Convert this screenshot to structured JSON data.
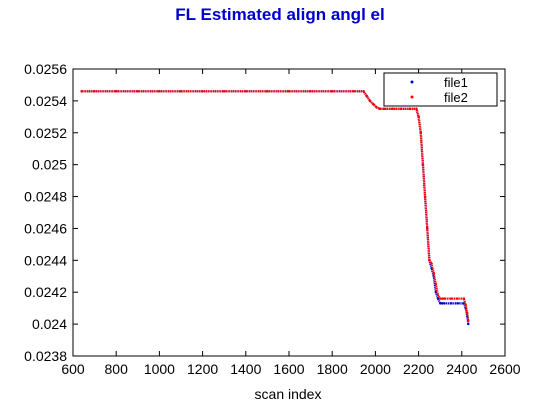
{
  "chart_data": {
    "type": "scatter",
    "title": "FL Estimated align angl el",
    "xlabel": "scan index",
    "ylabel": "",
    "xlim": [
      600,
      2600
    ],
    "ylim": [
      0.0238,
      0.0256
    ],
    "xticks": [
      "600",
      "800",
      "1000",
      "1200",
      "1400",
      "1600",
      "1800",
      "2000",
      "2200",
      "2400",
      "2600"
    ],
    "yticks": [
      "0.0238",
      "0.024",
      "0.0242",
      "0.0244",
      "0.0246",
      "0.0248",
      "0.025",
      "0.0252",
      "0.0254",
      "0.0256"
    ],
    "grid": false,
    "legend_position": "top-right",
    "series": [
      {
        "name": "file1",
        "color": "#0000cc",
        "marker": "dot",
        "x": [
          640,
          700,
          800,
          900,
          1000,
          1100,
          1200,
          1300,
          1400,
          1500,
          1600,
          1700,
          1800,
          1900,
          1945,
          1960,
          1975,
          1990,
          2005,
          2020,
          2040,
          2080,
          2120,
          2160,
          2190,
          2200,
          2210,
          2220,
          2230,
          2240,
          2250,
          2260,
          2270,
          2280,
          2290,
          2300,
          2310,
          2320,
          2350,
          2380,
          2410,
          2418,
          2425,
          2430
        ],
        "y": [
          0.02546,
          0.02546,
          0.02546,
          0.02546,
          0.02546,
          0.02546,
          0.02546,
          0.02546,
          0.02546,
          0.02546,
          0.02546,
          0.02546,
          0.02546,
          0.02546,
          0.02546,
          0.02543,
          0.0254,
          0.02538,
          0.02536,
          0.02535,
          0.02535,
          0.02535,
          0.02535,
          0.02535,
          0.02535,
          0.0253,
          0.0252,
          0.025,
          0.0248,
          0.0246,
          0.0244,
          0.02435,
          0.0243,
          0.0242,
          0.02416,
          0.02413,
          0.02413,
          0.02413,
          0.02413,
          0.02413,
          0.02413,
          0.0241,
          0.02405,
          0.024
        ]
      },
      {
        "name": "file2",
        "color": "#ff0000",
        "marker": "dot",
        "x": [
          640,
          700,
          800,
          900,
          1000,
          1100,
          1200,
          1300,
          1400,
          1500,
          1600,
          1700,
          1800,
          1900,
          1945,
          1960,
          1975,
          1990,
          2005,
          2020,
          2040,
          2080,
          2120,
          2160,
          2190,
          2200,
          2210,
          2220,
          2230,
          2240,
          2250,
          2260,
          2270,
          2280,
          2290,
          2300,
          2310,
          2320,
          2350,
          2380,
          2410,
          2418,
          2425,
          2430
        ],
        "y": [
          0.02546,
          0.02546,
          0.02546,
          0.02546,
          0.02546,
          0.02546,
          0.02546,
          0.02546,
          0.02546,
          0.02546,
          0.02546,
          0.02546,
          0.02546,
          0.02546,
          0.02546,
          0.02543,
          0.0254,
          0.02538,
          0.02536,
          0.02535,
          0.02535,
          0.02535,
          0.02535,
          0.02535,
          0.02535,
          0.0253,
          0.0252,
          0.025,
          0.0248,
          0.0246,
          0.0244,
          0.02438,
          0.02432,
          0.02425,
          0.02418,
          0.02416,
          0.02416,
          0.02416,
          0.02416,
          0.02416,
          0.02416,
          0.02412,
          0.02407,
          0.02402
        ]
      }
    ]
  },
  "colors": {
    "title": "#0000cc",
    "axis": "#000000",
    "background": "#ffffff"
  }
}
